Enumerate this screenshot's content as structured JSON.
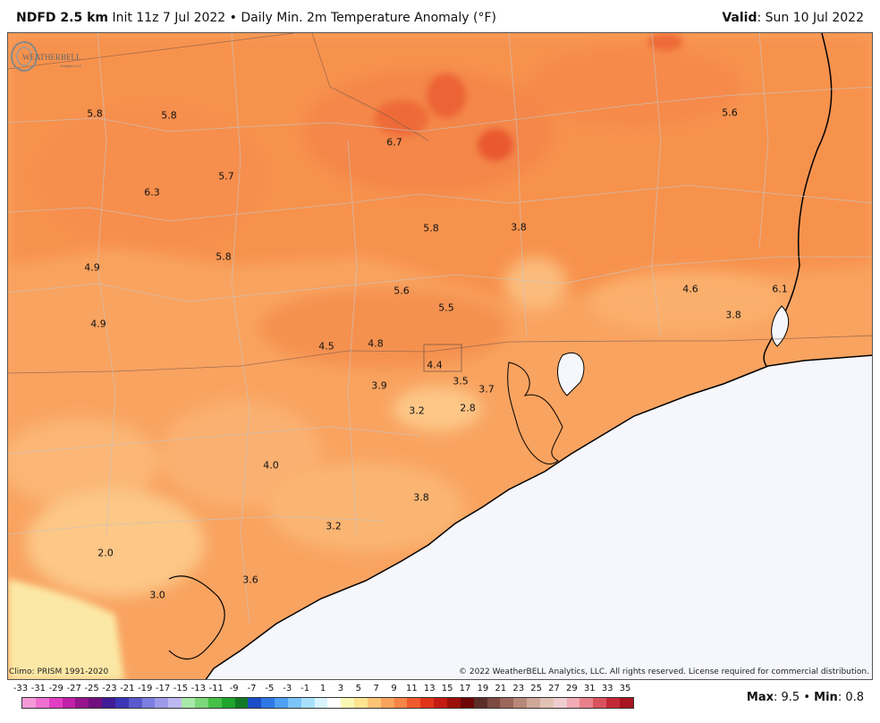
{
  "header": {
    "model": "NDFD 2.5 km",
    "init": "Init 11z 7 Jul 2022",
    "bullet": "•",
    "product": "Daily Min. 2m Temperature Anomaly (°F)",
    "valid_label": "Valid",
    "valid_value": ": Sun 10 Jul 2022"
  },
  "map": {
    "values": [
      {
        "text": "5.8",
        "lx": 105,
        "ly": 126
      },
      {
        "text": "5.8",
        "lx": 188,
        "ly": 128
      },
      {
        "text": "5.6",
        "lx": 815,
        "ly": 125
      },
      {
        "text": "6.7",
        "lx": 440,
        "ly": 158
      },
      {
        "text": "5.7",
        "lx": 252,
        "ly": 196
      },
      {
        "text": "6.3",
        "lx": 169,
        "ly": 214
      },
      {
        "text": "5.8",
        "lx": 481,
        "ly": 254
      },
      {
        "text": "3.8",
        "lx": 579,
        "ly": 253
      },
      {
        "text": "5.8",
        "lx": 249,
        "ly": 286
      },
      {
        "text": "4.9",
        "lx": 102,
        "ly": 298
      },
      {
        "text": "5.6",
        "lx": 448,
        "ly": 324
      },
      {
        "text": "4.6",
        "lx": 771,
        "ly": 322
      },
      {
        "text": "6.1",
        "lx": 871,
        "ly": 322
      },
      {
        "text": "5.5",
        "lx": 498,
        "ly": 343
      },
      {
        "text": "3.8",
        "lx": 819,
        "ly": 351
      },
      {
        "text": "4.9",
        "lx": 109,
        "ly": 361
      },
      {
        "text": "4.5",
        "lx": 364,
        "ly": 386
      },
      {
        "text": "4.8",
        "lx": 419,
        "ly": 383
      },
      {
        "text": "4.4",
        "lx": 485,
        "ly": 407
      },
      {
        "text": "3.5",
        "lx": 514,
        "ly": 425
      },
      {
        "text": "3.7",
        "lx": 543,
        "ly": 434
      },
      {
        "text": "3.9",
        "lx": 423,
        "ly": 430
      },
      {
        "text": "3.2",
        "lx": 465,
        "ly": 458
      },
      {
        "text": "2.8",
        "lx": 522,
        "ly": 455
      },
      {
        "text": "4.0",
        "lx": 302,
        "ly": 519
      },
      {
        "text": "3.8",
        "lx": 470,
        "ly": 555
      },
      {
        "text": "3.2",
        "lx": 372,
        "ly": 587
      },
      {
        "text": "2.0",
        "lx": 117,
        "ly": 617
      },
      {
        "text": "3.6",
        "lx": 279,
        "ly": 647
      },
      {
        "text": "3.0",
        "lx": 175,
        "ly": 664
      }
    ]
  },
  "footer": {
    "climo": "Climo: PRISM 1991-2020",
    "copyright": "© 2022 WeatherBELL Analytics, LLC. All rights reserved. License required for commercial distribution.",
    "max_label": "Max",
    "max_value": ": 9.5 •",
    "min_label": "Min",
    "min_value": ": 0.8"
  },
  "logo": {
    "text": "WEATHERBELL",
    "sub": "Analytics LLC"
  },
  "scale": {
    "labels": [
      "-33",
      "-31",
      "-29",
      "-27",
      "-25",
      "-23",
      "-21",
      "-19",
      "-17",
      "-15",
      "-13",
      "-11",
      "-9",
      "-7",
      "-5",
      "-3",
      "-1",
      "1",
      "3",
      "5",
      "7",
      "9",
      "11",
      "13",
      "15",
      "17",
      "19",
      "21",
      "23",
      "25",
      "27",
      "29",
      "31",
      "33",
      "35"
    ],
    "colors": [
      "#f59ad8",
      "#ee6fd0",
      "#e13ec4",
      "#c020a8",
      "#96148c",
      "#70107c",
      "#401c96",
      "#3a36b6",
      "#5a5acc",
      "#7c7ee0",
      "#9e9aea",
      "#bdb8f2",
      "#a8e8a8",
      "#7cd87a",
      "#46c046",
      "#1ea52e",
      "#127a26",
      "#1a4ec8",
      "#2e78e6",
      "#4ea0f2",
      "#7cc4f8",
      "#a8e0fc",
      "#d8f4ff",
      "#ffffff",
      "#fbf7b4",
      "#fde490",
      "#fbc476",
      "#f8a45c",
      "#f68446",
      "#f05a2c",
      "#e0341a",
      "#c41c12",
      "#9c0e0a",
      "#6e0606",
      "#5a2e26",
      "#7c4a40",
      "#9c665a",
      "#b88878",
      "#cfa898",
      "#e2c2b4",
      "#eeccd0",
      "#f2aab4",
      "#e8808c",
      "#d8525e",
      "#c42a36",
      "#a81420"
    ]
  }
}
